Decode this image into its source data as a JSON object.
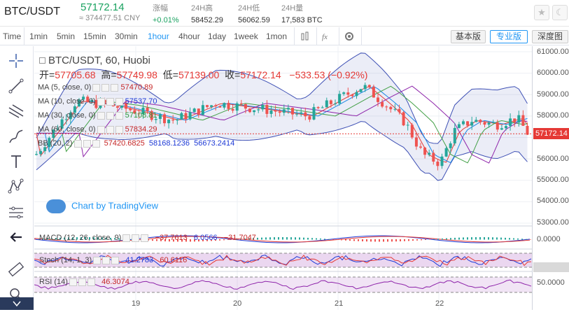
{
  "header": {
    "pair": "BTC/USDT",
    "price": "57172.14",
    "cny": "≈ 374477.51 CNY",
    "change_label": "涨幅",
    "change_value": "+0.01%",
    "high_label": "24H高",
    "high_value": "58452.29",
    "low_label": "24H低",
    "low_value": "56062.59",
    "vol_label": "24H量",
    "vol_value": "17,583 BTC",
    "star_icon": "star-icon",
    "moon_icon": "moon-icon"
  },
  "toolbar": {
    "intervals": [
      "Time",
      "1min",
      "5min",
      "15min",
      "30min",
      "1hour",
      "4hour",
      "1day",
      "1week",
      "1mon"
    ],
    "active": "1hour",
    "views": [
      "基本版",
      "专业版",
      "深度图"
    ]
  },
  "chart": {
    "title": "BTC/USDT, 60, Huobi",
    "open_label": "开=",
    "open": "57705.68",
    "high_label": "高=",
    "high": "57749.98",
    "low_label": "低=",
    "low": "57139.00",
    "close_label": "收=",
    "close": "57172.14",
    "chg": "−533.53 (−0.92%)",
    "ma5": "MA (5, close, 0)",
    "ma5_val": "57470.89",
    "ma10": "MA (10, close, 0)",
    "ma10_val": "57537.70",
    "ma30": "MA (30, close, 0)",
    "ma30_val": "57108.81",
    "ma60": "MA (60, close, 0)",
    "ma60_val": "57834.29",
    "bb": "BB (20, 2)",
    "bb1": "57420.6825",
    "bb2": "58168.1236",
    "bb3": "56673.2414",
    "macd": "MACD (12, 26, close, 9)",
    "macd1": "−37.7613",
    "macd2": "6.0566",
    "macd3": "−31.7047",
    "stoch": "Stoch (14, 1, 3)",
    "stoch1": "41.2783",
    "stoch2": "60.6116",
    "rsi": "RSI (14)",
    "rsi1": "46.3074",
    "attribution": "Chart by TradingView",
    "price_tag": "57172.14",
    "y_labels": [
      "61000.00",
      "60000.00",
      "59000.00",
      "58000.00",
      "57000.00",
      "56000.00",
      "55000.00",
      "54000.00",
      "53000.00"
    ],
    "macd_axis": "0.0000",
    "rsi_axis": "50.0000",
    "x_labels": [
      "19",
      "20",
      "21",
      "22"
    ],
    "colors": {
      "up": "#26a69a",
      "down": "#ef5350",
      "bb": "#3f51b5",
      "accent": "#2196f3"
    }
  }
}
